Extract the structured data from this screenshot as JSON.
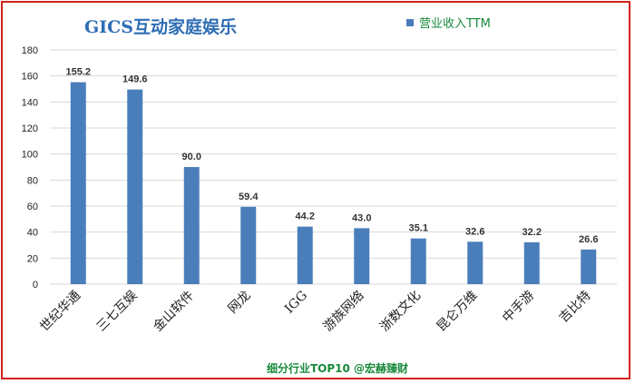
{
  "chart_data": {
    "type": "bar",
    "title": "GICS互动家庭娱乐",
    "legend": "营业收入TTM",
    "legend_position": "top-right",
    "footer": "细分行业TOP10 @宏赫臻财",
    "categories": [
      "世纪华通",
      "三七互娱",
      "金山软件",
      "网龙",
      "IGG",
      "游族网络",
      "浙数文化",
      "昆仑万维",
      "中手游",
      "吉比特"
    ],
    "values": [
      155.2,
      149.6,
      90.0,
      59.4,
      44.2,
      43.0,
      35.1,
      32.6,
      32.2,
      26.6
    ],
    "value_labels": [
      "155.2",
      "149.6",
      "90.0",
      "59.4",
      "44.2",
      "43.0",
      "35.1",
      "32.6",
      "32.2",
      "26.6"
    ],
    "yticks": [
      "0",
      "20",
      "40",
      "60",
      "80",
      "100",
      "120",
      "140",
      "160",
      "180"
    ],
    "ylim": [
      0,
      180
    ],
    "grid": true,
    "bar_color": "#4a7ebb"
  }
}
